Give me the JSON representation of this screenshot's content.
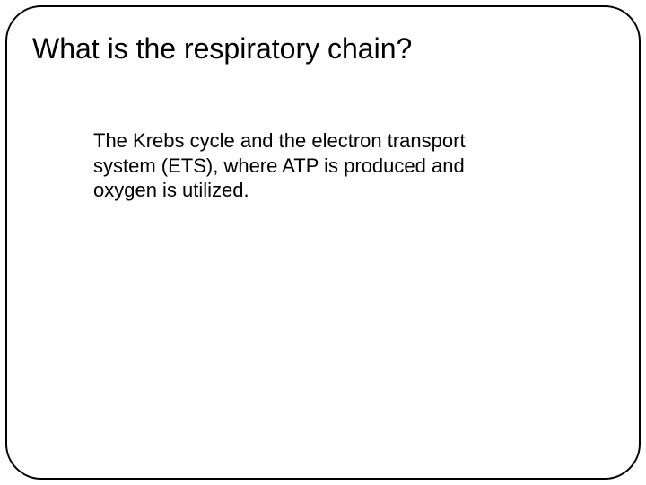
{
  "slide": {
    "title": "What is the respiratory chain?",
    "body": "The Krebs cycle and the electron transport system (ETS), where ATP is produced and oxygen is utilized.",
    "frame_border_color": "#000000",
    "frame_border_width": 2,
    "frame_border_radius": 40,
    "background_color": "#ffffff",
    "title_fontsize": 32,
    "body_fontsize": 22,
    "text_color": "#000000"
  }
}
